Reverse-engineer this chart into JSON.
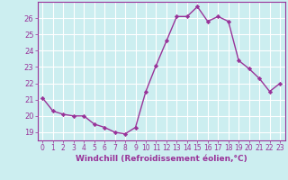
{
  "x": [
    0,
    1,
    2,
    3,
    4,
    5,
    6,
    7,
    8,
    9,
    10,
    11,
    12,
    13,
    14,
    15,
    16,
    17,
    18,
    19,
    20,
    21,
    22,
    23
  ],
  "y": [
    21.1,
    20.3,
    20.1,
    20.0,
    20.0,
    19.5,
    19.3,
    19.0,
    18.9,
    19.3,
    21.5,
    23.1,
    24.6,
    26.1,
    26.1,
    26.7,
    25.8,
    26.1,
    25.8,
    23.4,
    22.9,
    22.3,
    21.5,
    22.0
  ],
  "line_color": "#993399",
  "marker": "D",
  "marker_size": 2.2,
  "linewidth": 1.0,
  "xlabel": "Windchill (Refroidissement éolien,°C)",
  "xlabel_fontsize": 6.5,
  "ylim": [
    18.5,
    27.0
  ],
  "xlim": [
    -0.5,
    23.5
  ],
  "yticks": [
    19,
    20,
    21,
    22,
    23,
    24,
    25,
    26
  ],
  "xtick_labels": [
    "0",
    "1",
    "2",
    "3",
    "4",
    "5",
    "6",
    "7",
    "8",
    "9",
    "10",
    "11",
    "12",
    "13",
    "14",
    "15",
    "16",
    "17",
    "18",
    "19",
    "20",
    "21",
    "22",
    "23"
  ],
  "background_color": "#cceef0",
  "grid_color": "#ffffff",
  "tick_color": "#993399",
  "label_color": "#993399",
  "tick_fontsize": 5.5,
  "ytick_fontsize": 6.0
}
